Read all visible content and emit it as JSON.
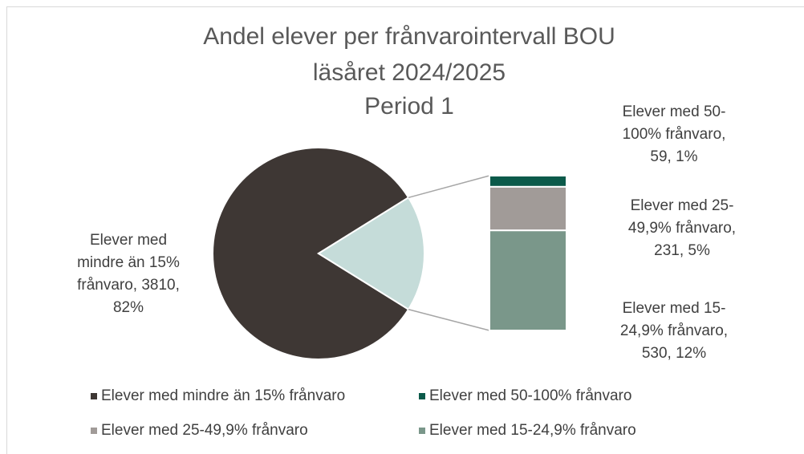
{
  "chart_data": {
    "type": "pie-of-bar",
    "title": [
      "Andel elever per frånvarointervall BOU",
      "läsåret 2024/2025",
      "Period 1"
    ],
    "categories": [
      "Elever med mindre än 15% frånvaro",
      "Elever med 50-100% frånvaro",
      "Elever med 25-49,9% frånvaro",
      "Elever med 15-24,9% frånvaro"
    ],
    "values": [
      3810,
      59,
      231,
      530
    ],
    "value_labels": [
      [
        "Elever med",
        "mindre än 15%",
        "frånvaro, 3810,",
        "82%"
      ],
      [
        "Elever med 50-",
        "100% frånvaro,",
        "59, 1%"
      ],
      [
        "Elever med 25-",
        "49,9% frånvaro,",
        "231, 5%"
      ],
      [
        "Elever med 15-",
        "24,9% frånvaro,",
        "530, 12%"
      ]
    ],
    "colors": [
      "#3e3734",
      "#0b5a4a",
      "#a19b98",
      "#7a978a"
    ],
    "other_color": "#c5dcd9",
    "legend": "bottom"
  }
}
